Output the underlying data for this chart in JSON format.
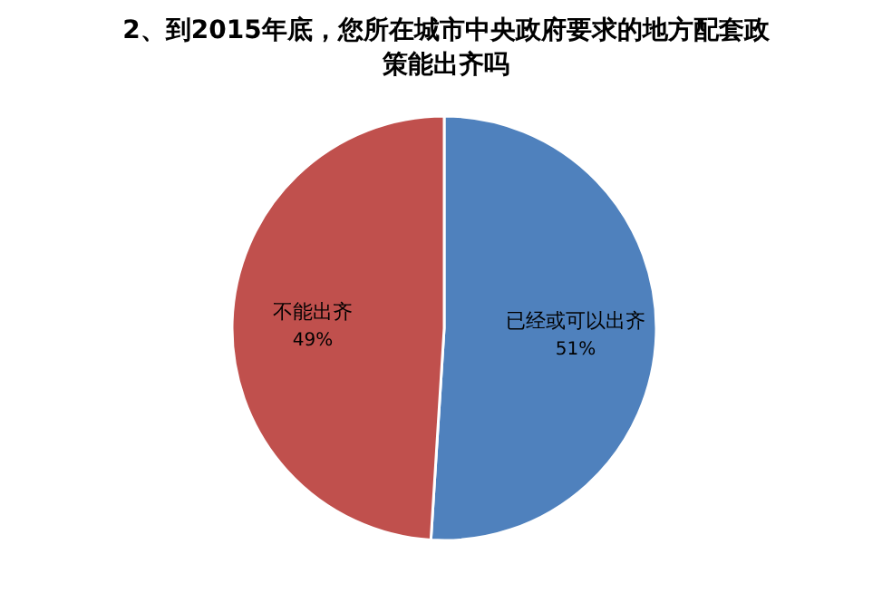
{
  "chart_data": {
    "type": "pie",
    "title": "2、到2015年底，您所在城市中央政府要求的地方配套政策能出齐吗",
    "categories": [
      "已经或可以出齐",
      "不能出齐"
    ],
    "values": [
      51,
      49
    ],
    "colors": [
      "#4f81bd",
      "#c0504d"
    ],
    "value_labels": [
      "51%",
      "49%"
    ]
  }
}
